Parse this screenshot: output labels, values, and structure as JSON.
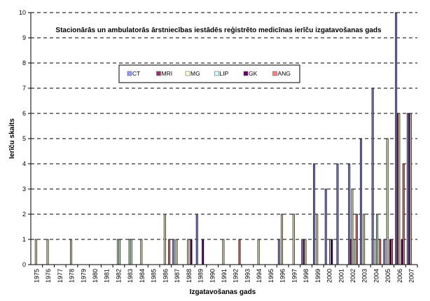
{
  "chart_data": {
    "type": "bar",
    "title": "Stacionārās un ambulatorās ārstniecības iestādēs reģistrēto medicīnas ierīču izgatavošanas gads",
    "xlabel": "Izgatavošanas gads",
    "ylabel": "Ierīču skaits",
    "ylim": [
      0,
      10
    ],
    "yticks": [
      "0",
      "1",
      "2",
      "3",
      "4",
      "5",
      "6",
      "7",
      "8",
      "9",
      "10"
    ],
    "grid": true,
    "legend_placement": "top-left",
    "categories": [
      "1975",
      "1976",
      "1977",
      "1978",
      "1979",
      "1980",
      "1981",
      "1982",
      "1983",
      "1984",
      "1985",
      "1986",
      "1987",
      "1988",
      "1989",
      "1990",
      "1991",
      "1992",
      "1993",
      "1994",
      "1995",
      "1996",
      "1997",
      "1998",
      "1999",
      "2000",
      "2001",
      "2002",
      "2003",
      "2004",
      "2005",
      "2006",
      "2007"
    ],
    "series": [
      {
        "name": "CT",
        "color": "#9999ff",
        "values": [
          0,
          0,
          0,
          0,
          0,
          0,
          0,
          0,
          0,
          0,
          0,
          0,
          1,
          0,
          2,
          0,
          0,
          0,
          0,
          0,
          0,
          1,
          0,
          1,
          4,
          3,
          4,
          4,
          5,
          7,
          1,
          10,
          6
        ]
      },
      {
        "name": "MRI",
        "color": "#993366",
        "values": [
          0,
          0,
          0,
          0,
          0,
          0,
          0,
          0,
          0,
          0,
          0,
          0,
          0,
          0,
          0,
          0,
          0,
          0,
          0,
          0,
          0,
          0,
          0,
          1,
          0,
          0,
          0,
          1,
          0,
          0,
          0,
          6,
          6
        ]
      },
      {
        "name": "MG",
        "color": "#ffffcc",
        "values": [
          1,
          1,
          0,
          1,
          0,
          0,
          0,
          1,
          1,
          1,
          0,
          2,
          1,
          1,
          0,
          0,
          1,
          0,
          0,
          1,
          0,
          2,
          2,
          1,
          2,
          0,
          0,
          3,
          2,
          1,
          5,
          6,
          6
        ]
      },
      {
        "name": "LIP",
        "color": "#ccffff",
        "values": [
          0,
          0,
          0,
          0,
          0,
          0,
          0,
          1,
          1,
          0,
          0,
          0,
          0,
          0,
          0,
          0,
          0,
          0,
          0,
          0,
          0,
          0,
          0,
          0,
          0,
          1,
          0,
          1,
          0,
          2,
          0,
          0,
          0
        ]
      },
      {
        "name": "GK",
        "color": "#660066",
        "values": [
          0,
          0,
          0,
          0,
          0,
          0,
          0,
          0,
          0,
          0,
          0,
          0,
          0,
          1,
          1,
          0,
          0,
          0,
          0,
          0,
          0,
          0,
          0,
          0,
          0,
          1,
          0,
          0,
          0,
          0,
          1,
          1,
          0
        ]
      },
      {
        "name": "ANG",
        "color": "#ff8080",
        "values": [
          0,
          0,
          0,
          0,
          0,
          0,
          0,
          0,
          0,
          0,
          0,
          1,
          0,
          0,
          0,
          0,
          0,
          1,
          0,
          0,
          0,
          0,
          0,
          0,
          0,
          0,
          0,
          2,
          0,
          1,
          1,
          4,
          0
        ]
      }
    ]
  }
}
